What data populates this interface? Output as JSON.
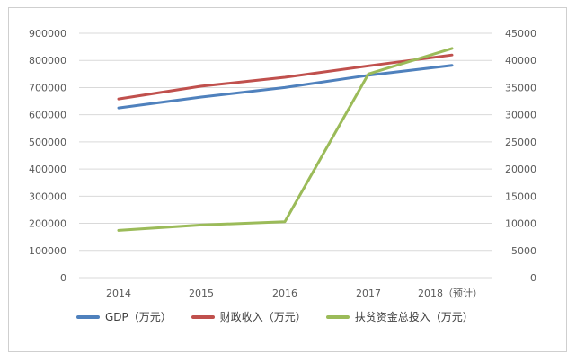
{
  "chart_data": {
    "type": "line",
    "categories": [
      "2014",
      "2015",
      "2016",
      "2017",
      "2018（预计）"
    ],
    "series": [
      {
        "name": "GDP（万元）",
        "axis": "left",
        "color": "#4f81bd",
        "values": [
          625000,
          665000,
          700000,
          745000,
          782000
        ]
      },
      {
        "name": "财政收入（万元）",
        "axis": "left",
        "color": "#c0504d",
        "values": [
          658000,
          705000,
          738000,
          780000,
          820000
        ]
      },
      {
        "name": "扶贫资金总投入（万元）",
        "axis": "right",
        "color": "#9bbb59",
        "values": [
          8700,
          9700,
          10300,
          37500,
          42200
        ]
      }
    ],
    "y_left": {
      "lim": [
        0,
        900000
      ],
      "ticks": [
        "0",
        "100000",
        "200000",
        "300000",
        "400000",
        "500000",
        "600000",
        "700000",
        "800000",
        "900000"
      ]
    },
    "y_right": {
      "lim": [
        0,
        45000
      ],
      "ticks": [
        "0",
        "5000",
        "10000",
        "15000",
        "20000",
        "25000",
        "30000",
        "35000",
        "40000",
        "45000"
      ]
    },
    "grid": "horizontal",
    "legend_position": "bottom"
  }
}
